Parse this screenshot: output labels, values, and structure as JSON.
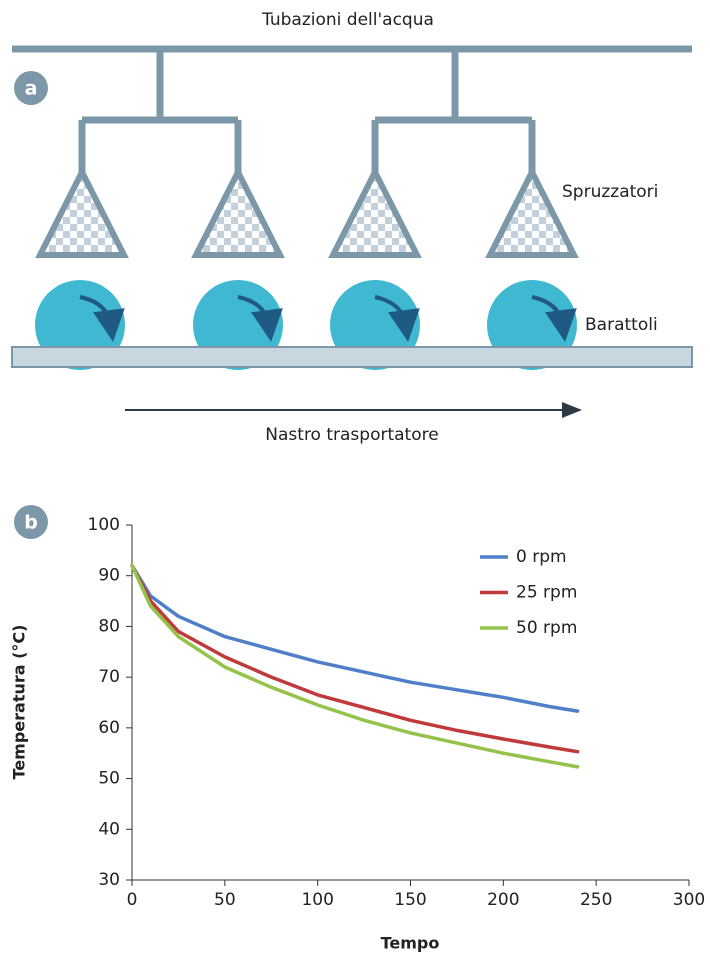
{
  "diagram": {
    "panel_label": "a",
    "pipe_label": "Tubazioni dell'acqua",
    "sprayer_label": "Spruzzatori",
    "can_label": "Barattoli",
    "conveyor_label": "Nastro trasportatore"
  },
  "chart_data": {
    "type": "line",
    "panel_label": "b",
    "x_label": "Tempo",
    "y_label": "Temperatura (°C)",
    "x": [
      0,
      10,
      25,
      50,
      75,
      100,
      125,
      150,
      175,
      200,
      225,
      240
    ],
    "series": [
      {
        "name": "0 rpm",
        "color": "#4f7fc8",
        "values": [
          92,
          86,
          82,
          78,
          75.5,
          73,
          71,
          69,
          67.5,
          66,
          64.2,
          63.3
        ]
      },
      {
        "name": "25 rpm",
        "color": "#c0393b",
        "values": [
          92,
          85,
          79,
          74,
          70,
          66.5,
          64,
          61.5,
          59.5,
          57.8,
          56.2,
          55.3
        ]
      },
      {
        "name": "50 rpm",
        "color": "#94c24a",
        "values": [
          92,
          84,
          78,
          72,
          68,
          64.5,
          61.5,
          59,
          57,
          55,
          53.3,
          52.3
        ]
      }
    ],
    "xlim": [
      0,
      300
    ],
    "xticks": [
      0,
      50,
      100,
      150,
      200,
      250,
      300
    ],
    "ylim": [
      30,
      100
    ],
    "yticks": [
      30,
      40,
      50,
      60,
      70,
      80,
      90,
      100
    ],
    "grid": false,
    "legend": "upper-right"
  }
}
